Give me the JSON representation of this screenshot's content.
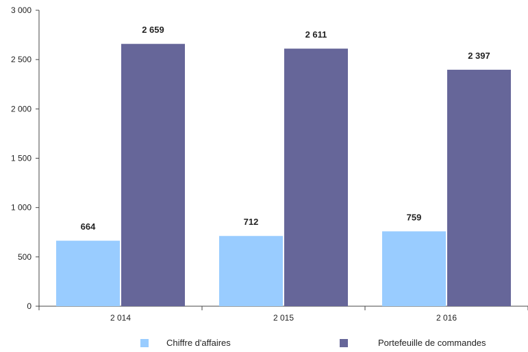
{
  "chart_data": {
    "type": "bar",
    "categories": [
      "2 014",
      "2 015",
      "2 016"
    ],
    "series": [
      {
        "name": "Chiffre d'affaires",
        "values": [
          664,
          712,
          759
        ],
        "labels": [
          "664",
          "712",
          "759"
        ],
        "color": "#99ccff"
      },
      {
        "name": "Portefeuille de commandes",
        "values": [
          2659,
          2611,
          2397
        ],
        "labels": [
          "2 659",
          "2 611",
          "2 397"
        ],
        "color": "#666699"
      }
    ],
    "yticks": [
      0,
      500,
      1000,
      1500,
      2000,
      2500,
      3000
    ],
    "ytick_labels": [
      "0",
      "500",
      "1 000",
      "1 500",
      "2 000",
      "2 500",
      "3 000"
    ],
    "ylim": [
      0,
      3000
    ],
    "grid": false,
    "legend_position": "bottom"
  }
}
